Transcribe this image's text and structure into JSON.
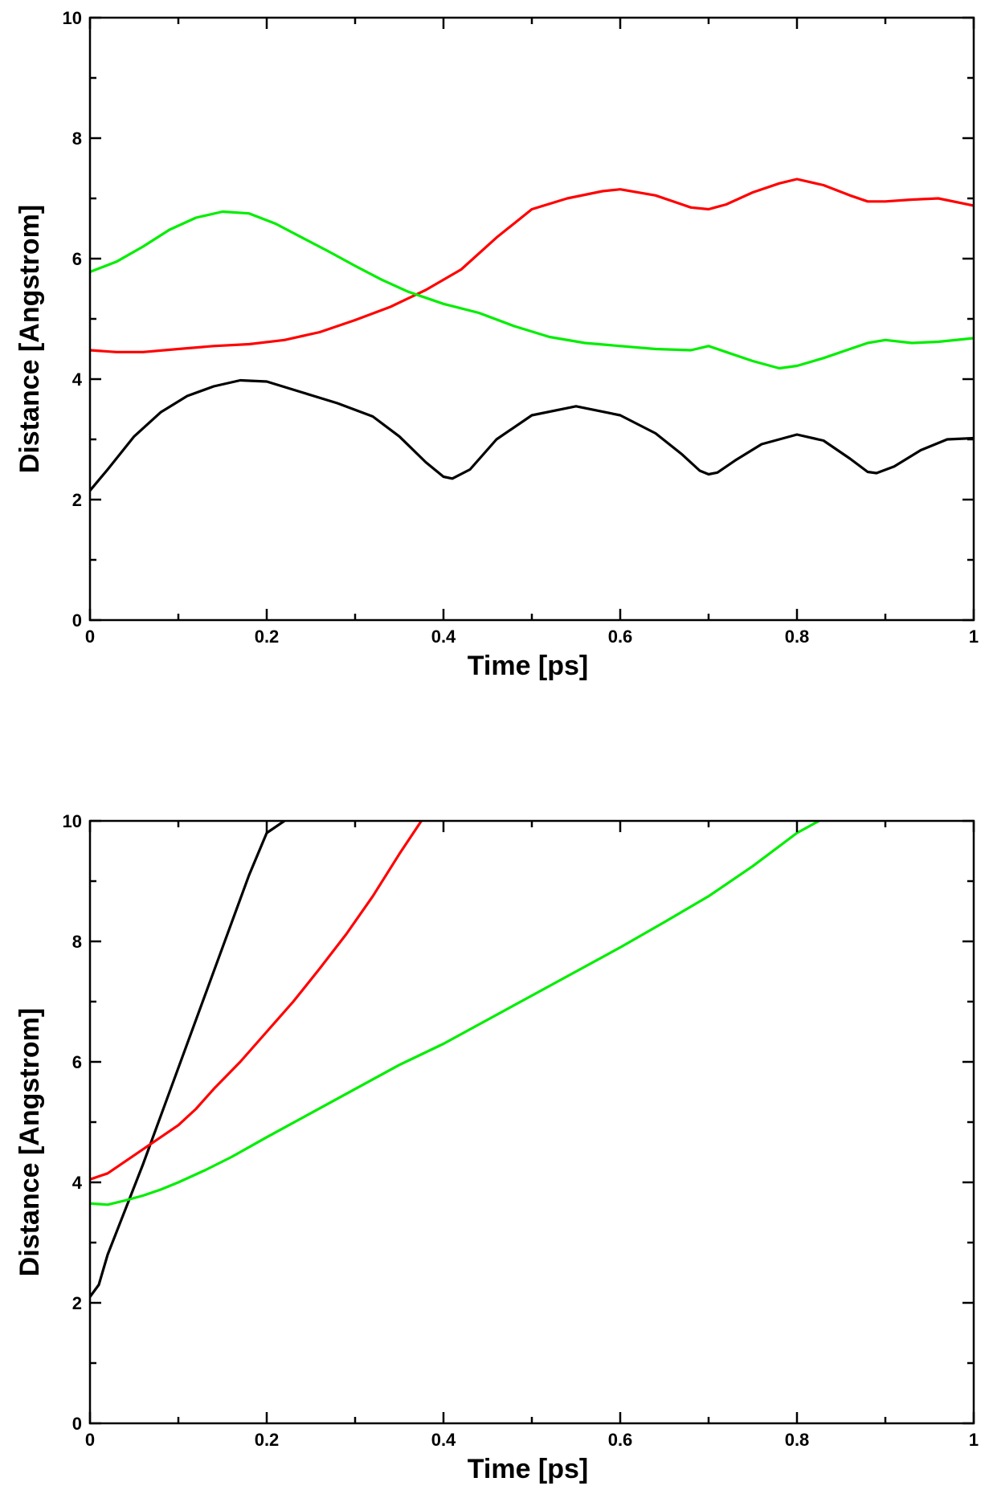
{
  "chart_data": [
    {
      "type": "line",
      "title": "",
      "xlabel": "Time [ps]",
      "ylabel": "Distance [Angstrom]",
      "xlim": [
        0,
        1
      ],
      "ylim": [
        0,
        10
      ],
      "xticks": [
        "0",
        "0.2",
        "0.4",
        "0.6",
        "0.8",
        "1"
      ],
      "yticks": [
        "0",
        "2",
        "4",
        "6",
        "8",
        "10"
      ],
      "series": [
        {
          "name": "black",
          "color": "#000000",
          "x": [
            0,
            0.02,
            0.05,
            0.08,
            0.11,
            0.14,
            0.17,
            0.2,
            0.24,
            0.28,
            0.32,
            0.35,
            0.38,
            0.4,
            0.41,
            0.43,
            0.46,
            0.5,
            0.55,
            0.6,
            0.64,
            0.67,
            0.69,
            0.7,
            0.71,
            0.73,
            0.76,
            0.8,
            0.83,
            0.86,
            0.88,
            0.89,
            0.91,
            0.94,
            0.97,
            1.0
          ],
          "y": [
            2.15,
            2.5,
            3.05,
            3.45,
            3.72,
            3.88,
            3.98,
            3.96,
            3.78,
            3.6,
            3.38,
            3.05,
            2.62,
            2.38,
            2.35,
            2.5,
            3.0,
            3.4,
            3.55,
            3.4,
            3.1,
            2.75,
            2.48,
            2.42,
            2.45,
            2.65,
            2.92,
            3.08,
            2.98,
            2.68,
            2.46,
            2.44,
            2.55,
            2.82,
            3.0,
            3.02
          ]
        },
        {
          "name": "red",
          "color": "#ff0000",
          "x": [
            0,
            0.03,
            0.06,
            0.1,
            0.14,
            0.18,
            0.22,
            0.26,
            0.3,
            0.34,
            0.38,
            0.42,
            0.46,
            0.5,
            0.54,
            0.58,
            0.6,
            0.64,
            0.68,
            0.7,
            0.72,
            0.75,
            0.78,
            0.8,
            0.83,
            0.86,
            0.88,
            0.9,
            0.93,
            0.96,
            1.0
          ],
          "y": [
            4.48,
            4.45,
            4.45,
            4.5,
            4.55,
            4.58,
            4.65,
            4.78,
            4.98,
            5.2,
            5.48,
            5.82,
            6.35,
            6.82,
            7.0,
            7.12,
            7.15,
            7.05,
            6.85,
            6.82,
            6.9,
            7.1,
            7.25,
            7.32,
            7.22,
            7.05,
            6.95,
            6.95,
            6.98,
            7.0,
            6.88
          ]
        },
        {
          "name": "green",
          "color": "#00ee00",
          "x": [
            0,
            0.03,
            0.06,
            0.09,
            0.12,
            0.15,
            0.18,
            0.21,
            0.24,
            0.27,
            0.3,
            0.33,
            0.36,
            0.4,
            0.44,
            0.48,
            0.52,
            0.56,
            0.6,
            0.64,
            0.68,
            0.7,
            0.72,
            0.75,
            0.78,
            0.8,
            0.83,
            0.86,
            0.88,
            0.9,
            0.93,
            0.96,
            1.0
          ],
          "y": [
            5.78,
            5.95,
            6.2,
            6.48,
            6.68,
            6.78,
            6.75,
            6.58,
            6.35,
            6.12,
            5.88,
            5.65,
            5.45,
            5.25,
            5.1,
            4.88,
            4.7,
            4.6,
            4.55,
            4.5,
            4.48,
            4.55,
            4.45,
            4.3,
            4.18,
            4.22,
            4.35,
            4.5,
            4.6,
            4.65,
            4.6,
            4.62,
            4.68
          ]
        }
      ]
    },
    {
      "type": "line",
      "title": "",
      "xlabel": "Time [ps]",
      "ylabel": "Distance [Angstrom]",
      "xlim": [
        0,
        1
      ],
      "ylim": [
        0,
        10
      ],
      "xticks": [
        "0",
        "0.2",
        "0.4",
        "0.6",
        "0.8",
        "1"
      ],
      "yticks": [
        "0",
        "2",
        "4",
        "6",
        "8",
        "10"
      ],
      "series": [
        {
          "name": "black",
          "color": "#000000",
          "x": [
            0,
            0.01,
            0.02,
            0.04,
            0.06,
            0.08,
            0.1,
            0.12,
            0.14,
            0.16,
            0.18,
            0.2,
            0.22
          ],
          "y": [
            2.1,
            2.3,
            2.8,
            3.55,
            4.3,
            5.1,
            5.9,
            6.7,
            7.5,
            8.3,
            9.1,
            9.8,
            10.0
          ]
        },
        {
          "name": "red",
          "color": "#ff0000",
          "x": [
            0,
            0.02,
            0.04,
            0.06,
            0.08,
            0.1,
            0.12,
            0.14,
            0.17,
            0.2,
            0.23,
            0.26,
            0.29,
            0.32,
            0.35,
            0.375
          ],
          "y": [
            4.05,
            4.15,
            4.35,
            4.55,
            4.75,
            4.95,
            5.22,
            5.55,
            6.0,
            6.5,
            7.0,
            7.55,
            8.12,
            8.75,
            9.45,
            10.0
          ]
        },
        {
          "name": "green",
          "color": "#00ee00",
          "x": [
            0,
            0.02,
            0.04,
            0.06,
            0.08,
            0.1,
            0.13,
            0.16,
            0.2,
            0.25,
            0.3,
            0.35,
            0.4,
            0.45,
            0.5,
            0.55,
            0.6,
            0.65,
            0.7,
            0.75,
            0.8,
            0.825
          ],
          "y": [
            3.65,
            3.63,
            3.7,
            3.78,
            3.88,
            4.0,
            4.2,
            4.42,
            4.75,
            5.15,
            5.55,
            5.95,
            6.3,
            6.7,
            7.1,
            7.5,
            7.9,
            8.32,
            8.75,
            9.25,
            9.8,
            10.0
          ]
        }
      ]
    }
  ]
}
